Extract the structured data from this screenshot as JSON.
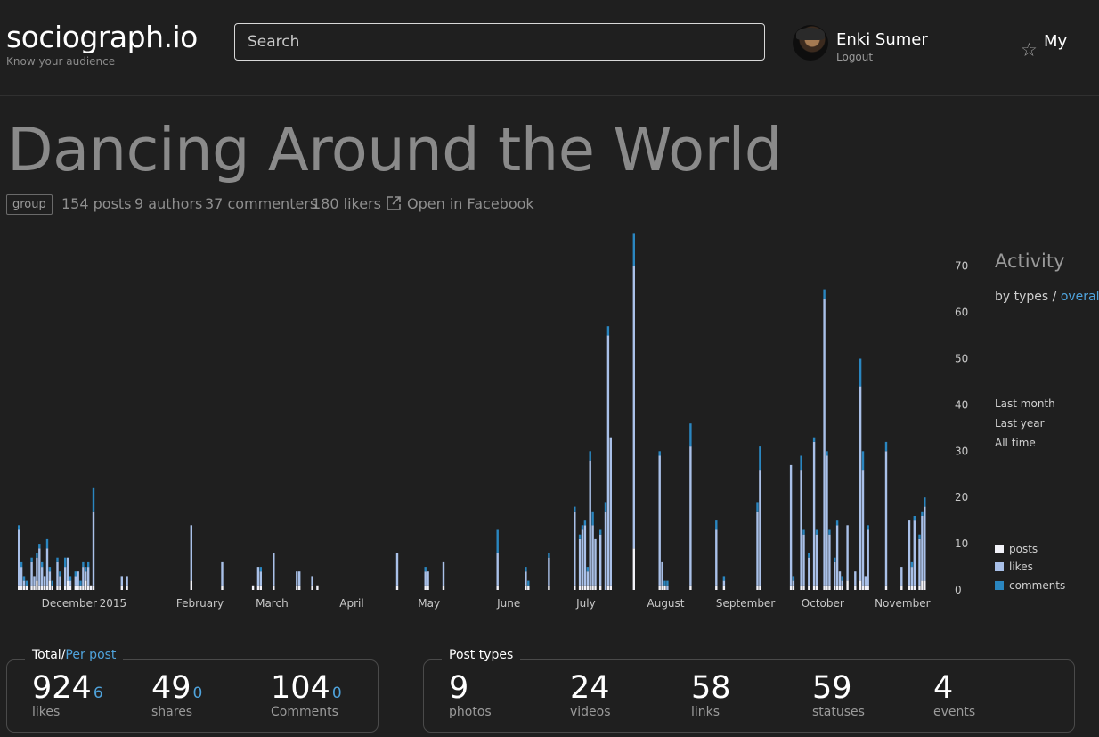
{
  "header": {
    "logo": "sociograph.io",
    "tagline": "Know your audience",
    "search_placeholder": "Search",
    "user_name": "Enki Sumer",
    "logout": "Logout",
    "star_icon": "star-icon",
    "my_label": "My"
  },
  "page": {
    "title": "Dancing Around the World",
    "badge": "group",
    "stats": [
      "154 posts",
      "9 authors",
      "37 commenters",
      "180 likers"
    ],
    "open_link": "Open in Facebook"
  },
  "sidebar": {
    "heading": "Activity",
    "by_types": "by types",
    "separator": "/",
    "overall": "overall",
    "ranges": [
      "Last month",
      "Last year",
      "All time"
    ],
    "active_range": "All time",
    "legend": [
      "posts",
      "likes",
      "comments"
    ]
  },
  "colors": {
    "posts": "#f2f2f8",
    "likes": "#a9c0e8",
    "comments": "#2a86c0",
    "accent": "#4fa3dc"
  },
  "chart_data": {
    "type": "bar",
    "stacked": true,
    "x_tick_labels": [
      "December",
      "2015",
      "February",
      "March",
      "April",
      "May",
      "June",
      "July",
      "August",
      "September",
      "October",
      "November"
    ],
    "y_ticks": [
      0,
      10,
      20,
      30,
      40,
      50,
      60,
      70
    ],
    "ylim": [
      0,
      77
    ],
    "legend_placement": "right",
    "bars": [
      {
        "date": "2014-11-25",
        "posts": 1,
        "likes": 12,
        "comments": 1
      },
      {
        "date": "2014-11-26",
        "posts": 1,
        "likes": 4,
        "comments": 1
      },
      {
        "date": "2014-11-27",
        "posts": 1,
        "likes": 1,
        "comments": 1
      },
      {
        "date": "2014-11-28",
        "posts": 1,
        "likes": 0,
        "comments": 1
      },
      {
        "date": "2014-11-30",
        "posts": 1,
        "likes": 5,
        "comments": 1
      },
      {
        "date": "2014-12-01",
        "posts": 1,
        "likes": 2,
        "comments": 0
      },
      {
        "date": "2014-12-02",
        "posts": 2,
        "likes": 5,
        "comments": 1
      },
      {
        "date": "2014-12-03",
        "posts": 1,
        "likes": 8,
        "comments": 1
      },
      {
        "date": "2014-12-04",
        "posts": 1,
        "likes": 4,
        "comments": 1
      },
      {
        "date": "2014-12-05",
        "posts": 1,
        "likes": 2,
        "comments": 0
      },
      {
        "date": "2014-12-06",
        "posts": 1,
        "likes": 8,
        "comments": 2
      },
      {
        "date": "2014-12-07",
        "posts": 2,
        "likes": 2,
        "comments": 1
      },
      {
        "date": "2014-12-08",
        "posts": 1,
        "likes": 0,
        "comments": 1
      },
      {
        "date": "2014-12-10",
        "posts": 1,
        "likes": 5,
        "comments": 1
      },
      {
        "date": "2014-12-11",
        "posts": 1,
        "likes": 2,
        "comments": 1
      },
      {
        "date": "2014-12-13",
        "posts": 1,
        "likes": 4,
        "comments": 2
      },
      {
        "date": "2014-12-14",
        "posts": 2,
        "likes": 5,
        "comments": 0
      },
      {
        "date": "2014-12-15",
        "posts": 1,
        "likes": 1,
        "comments": 1
      },
      {
        "date": "2014-12-17",
        "posts": 1,
        "likes": 2,
        "comments": 1
      },
      {
        "date": "2014-12-18",
        "posts": 1,
        "likes": 3,
        "comments": 0
      },
      {
        "date": "2014-12-19",
        "posts": 1,
        "likes": 0,
        "comments": 1
      },
      {
        "date": "2014-12-20",
        "posts": 1,
        "likes": 4,
        "comments": 1
      },
      {
        "date": "2014-12-21",
        "posts": 2,
        "likes": 2,
        "comments": 1
      },
      {
        "date": "2014-12-22",
        "posts": 1,
        "likes": 4,
        "comments": 1
      },
      {
        "date": "2014-12-23",
        "posts": 1,
        "likes": 0,
        "comments": 0
      },
      {
        "date": "2014-12-24",
        "posts": 1,
        "likes": 16,
        "comments": 5
      },
      {
        "date": "2015-01-04",
        "posts": 1,
        "likes": 2,
        "comments": 0
      },
      {
        "date": "2015-01-06",
        "posts": 1,
        "likes": 2,
        "comments": 0
      },
      {
        "date": "2015-01-31",
        "posts": 2,
        "likes": 12,
        "comments": 0
      },
      {
        "date": "2015-02-12",
        "posts": 1,
        "likes": 5,
        "comments": 0
      },
      {
        "date": "2015-02-24",
        "posts": 1,
        "likes": 0,
        "comments": 0
      },
      {
        "date": "2015-02-26",
        "posts": 1,
        "likes": 4,
        "comments": 0
      },
      {
        "date": "2015-02-27",
        "posts": 1,
        "likes": 3,
        "comments": 1
      },
      {
        "date": "2015-03-04",
        "posts": 1,
        "likes": 7,
        "comments": 0
      },
      {
        "date": "2015-03-13",
        "posts": 1,
        "likes": 3,
        "comments": 0
      },
      {
        "date": "2015-03-14",
        "posts": 1,
        "likes": 3,
        "comments": 0
      },
      {
        "date": "2015-03-19",
        "posts": 1,
        "likes": 2,
        "comments": 0
      },
      {
        "date": "2015-03-21",
        "posts": 1,
        "likes": 0,
        "comments": 0
      },
      {
        "date": "2015-04-21",
        "posts": 1,
        "likes": 7,
        "comments": 0
      },
      {
        "date": "2015-05-02",
        "posts": 1,
        "likes": 3,
        "comments": 1
      },
      {
        "date": "2015-05-03",
        "posts": 1,
        "likes": 3,
        "comments": 0
      },
      {
        "date": "2015-05-09",
        "posts": 1,
        "likes": 5,
        "comments": 0
      },
      {
        "date": "2015-05-30",
        "posts": 1,
        "likes": 7,
        "comments": 5
      },
      {
        "date": "2015-06-10",
        "posts": 1,
        "likes": 3,
        "comments": 1
      },
      {
        "date": "2015-06-11",
        "posts": 1,
        "likes": 0,
        "comments": 1
      },
      {
        "date": "2015-06-19",
        "posts": 1,
        "likes": 6,
        "comments": 1
      },
      {
        "date": "2015-06-29",
        "posts": 1,
        "likes": 16,
        "comments": 1
      },
      {
        "date": "2015-07-01",
        "posts": 1,
        "likes": 10,
        "comments": 1
      },
      {
        "date": "2015-07-02",
        "posts": 1,
        "likes": 12,
        "comments": 1
      },
      {
        "date": "2015-07-03",
        "posts": 1,
        "likes": 13,
        "comments": 1
      },
      {
        "date": "2015-07-04",
        "posts": 1,
        "likes": 3,
        "comments": 1
      },
      {
        "date": "2015-07-05",
        "posts": 1,
        "likes": 27,
        "comments": 2
      },
      {
        "date": "2015-07-06",
        "posts": 1,
        "likes": 13,
        "comments": 3
      },
      {
        "date": "2015-07-07",
        "posts": 1,
        "likes": 10,
        "comments": 0
      },
      {
        "date": "2015-07-09",
        "posts": 1,
        "likes": 11,
        "comments": 1
      },
      {
        "date": "2015-07-11",
        "posts": 0,
        "likes": 17,
        "comments": 2
      },
      {
        "date": "2015-07-12",
        "posts": 1,
        "likes": 54,
        "comments": 2
      },
      {
        "date": "2015-07-13",
        "posts": 1,
        "likes": 32,
        "comments": 0
      },
      {
        "date": "2015-07-22",
        "posts": 9,
        "likes": 61,
        "comments": 7
      },
      {
        "date": "2015-08-01",
        "posts": 1,
        "likes": 28,
        "comments": 1
      },
      {
        "date": "2015-08-02",
        "posts": 1,
        "likes": 5,
        "comments": 0
      },
      {
        "date": "2015-08-03",
        "posts": 1,
        "likes": 0,
        "comments": 1
      },
      {
        "date": "2015-08-04",
        "posts": 0,
        "likes": 1,
        "comments": 1
      },
      {
        "date": "2015-08-13",
        "posts": 1,
        "likes": 30,
        "comments": 5
      },
      {
        "date": "2015-08-23",
        "posts": 1,
        "likes": 12,
        "comments": 2
      },
      {
        "date": "2015-08-26",
        "posts": 1,
        "likes": 1,
        "comments": 1
      },
      {
        "date": "2015-09-08",
        "posts": 1,
        "likes": 16,
        "comments": 2
      },
      {
        "date": "2015-09-09",
        "posts": 1,
        "likes": 25,
        "comments": 5
      },
      {
        "date": "2015-09-21",
        "posts": 1,
        "likes": 26,
        "comments": 0
      },
      {
        "date": "2015-09-22",
        "posts": 1,
        "likes": 1,
        "comments": 1
      },
      {
        "date": "2015-09-25",
        "posts": 1,
        "likes": 25,
        "comments": 3
      },
      {
        "date": "2015-09-26",
        "posts": 1,
        "likes": 11,
        "comments": 1
      },
      {
        "date": "2015-09-28",
        "posts": 1,
        "likes": 6,
        "comments": 1
      },
      {
        "date": "2015-09-30",
        "posts": 1,
        "likes": 31,
        "comments": 1
      },
      {
        "date": "2015-10-01",
        "posts": 1,
        "likes": 11,
        "comments": 1
      },
      {
        "date": "2015-10-04",
        "posts": 1,
        "likes": 62,
        "comments": 2
      },
      {
        "date": "2015-10-05",
        "posts": 1,
        "likes": 28,
        "comments": 1
      },
      {
        "date": "2015-10-06",
        "posts": 1,
        "likes": 11,
        "comments": 1
      },
      {
        "date": "2015-10-08",
        "posts": 1,
        "likes": 5,
        "comments": 1
      },
      {
        "date": "2015-10-09",
        "posts": 1,
        "likes": 13,
        "comments": 1
      },
      {
        "date": "2015-10-10",
        "posts": 1,
        "likes": 3,
        "comments": 0
      },
      {
        "date": "2015-10-11",
        "posts": 1,
        "likes": 1,
        "comments": 1
      },
      {
        "date": "2015-10-13",
        "posts": 2,
        "likes": 12,
        "comments": 0
      },
      {
        "date": "2015-10-16",
        "posts": 1,
        "likes": 3,
        "comments": 0
      },
      {
        "date": "2015-10-18",
        "posts": 2,
        "likes": 42,
        "comments": 6
      },
      {
        "date": "2015-10-19",
        "posts": 1,
        "likes": 25,
        "comments": 4
      },
      {
        "date": "2015-10-20",
        "posts": 1,
        "likes": 2,
        "comments": 0
      },
      {
        "date": "2015-10-21",
        "posts": 1,
        "likes": 12,
        "comments": 1
      },
      {
        "date": "2015-10-28",
        "posts": 1,
        "likes": 29,
        "comments": 2
      },
      {
        "date": "2015-11-03",
        "posts": 1,
        "likes": 4,
        "comments": 0
      },
      {
        "date": "2015-11-06",
        "posts": 1,
        "likes": 14,
        "comments": 0
      },
      {
        "date": "2015-11-07",
        "posts": 1,
        "likes": 4,
        "comments": 1
      },
      {
        "date": "2015-11-08",
        "posts": 1,
        "likes": 14,
        "comments": 1
      },
      {
        "date": "2015-11-10",
        "posts": 1,
        "likes": 10,
        "comments": 1
      },
      {
        "date": "2015-11-11",
        "posts": 2,
        "likes": 14,
        "comments": 1
      },
      {
        "date": "2015-11-12",
        "posts": 2,
        "likes": 16,
        "comments": 2
      }
    ]
  },
  "totals": {
    "label_total": "Total",
    "label_sep": "/",
    "label_per_post": "Per post",
    "items": [
      {
        "value": "924",
        "sub": "6",
        "label": "likes"
      },
      {
        "value": "49",
        "sub": "0",
        "label": "shares"
      },
      {
        "value": "104",
        "sub": "0",
        "label": "Comments"
      }
    ]
  },
  "post_types": {
    "label": "Post types",
    "items": [
      {
        "value": "9",
        "label": "photos"
      },
      {
        "value": "24",
        "label": "videos"
      },
      {
        "value": "58",
        "label": "links"
      },
      {
        "value": "59",
        "label": "statuses"
      },
      {
        "value": "4",
        "label": "events"
      }
    ]
  }
}
